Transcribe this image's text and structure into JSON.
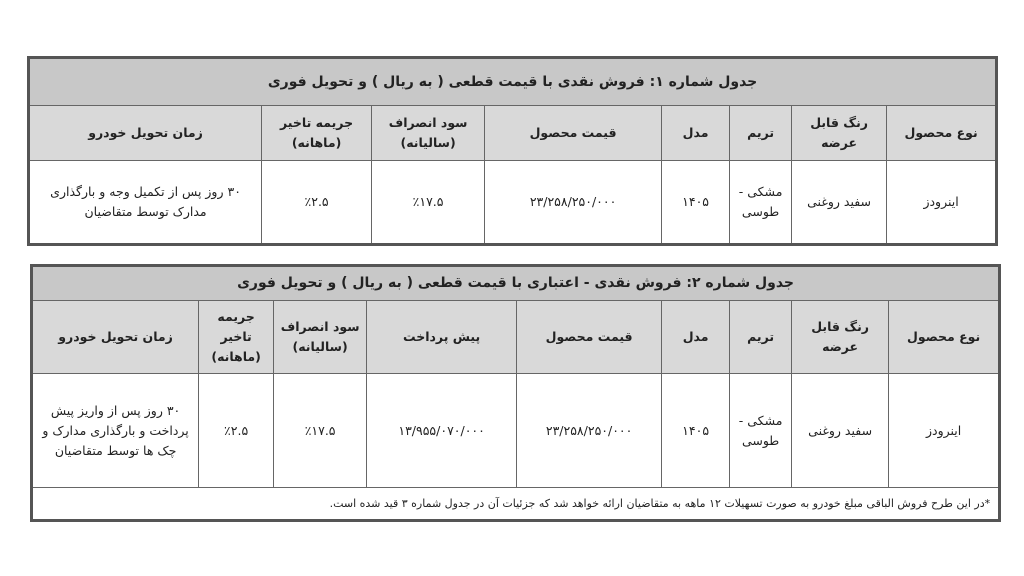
{
  "table1": {
    "title": "جدول شماره ۱: فروش نقدی با قیمت قطعی ( به ریال ) و تحویل فوری",
    "headers": [
      "نوع محصول",
      "رنگ قابل عرضه",
      "تریم",
      "مدل",
      "قیمت محصول",
      "سود انصراف (سالیانه)",
      "جریمه تاخیر (ماهانه)",
      "زمان تحویل خودرو"
    ],
    "row": [
      "اینرودز",
      "سفید روغنی",
      "مشکی - طوسی",
      "۱۴۰۵",
      "۲۳/۲۵۸/۲۵۰/۰۰۰",
      "٪۱۷.۵",
      "٪۲.۵",
      "۳۰ روز پس از تکمیل وجه و بارگذاری مدارک توسط متقاضیان"
    ]
  },
  "table2": {
    "title": "جدول شماره ۲: فروش نقدی - اعتباری با قیمت قطعی ( به ریال ) و تحویل فوری",
    "headers": [
      "نوع محصول",
      "رنگ قابل عرضه",
      "تریم",
      "مدل",
      "قیمت محصول",
      "پیش پرداخت",
      "سود انصراف (سالیانه)",
      "جریمه تاخیر (ماهانه)",
      "زمان تحویل خودرو"
    ],
    "row": [
      "اینرودز",
      "سفید روغنی",
      "مشکی - طوسی",
      "۱۴۰۵",
      "۲۳/۲۵۸/۲۵۰/۰۰۰",
      "۱۳/۹۵۵/۰۷۰/۰۰۰",
      "٪۱۷.۵",
      "٪۲.۵",
      "۳۰ روز پس از واریز پیش پرداخت و بارگذاری مدارک و چک ها توسط متقاضیان"
    ],
    "note": "*در این طرح فروش الباقی مبلغ خودرو به صورت تسهیلات ۱۲ ماهه به متقاضیان ارائه خواهد شد که جزئیات آن در جدول شماره ۳ قید شده است."
  }
}
